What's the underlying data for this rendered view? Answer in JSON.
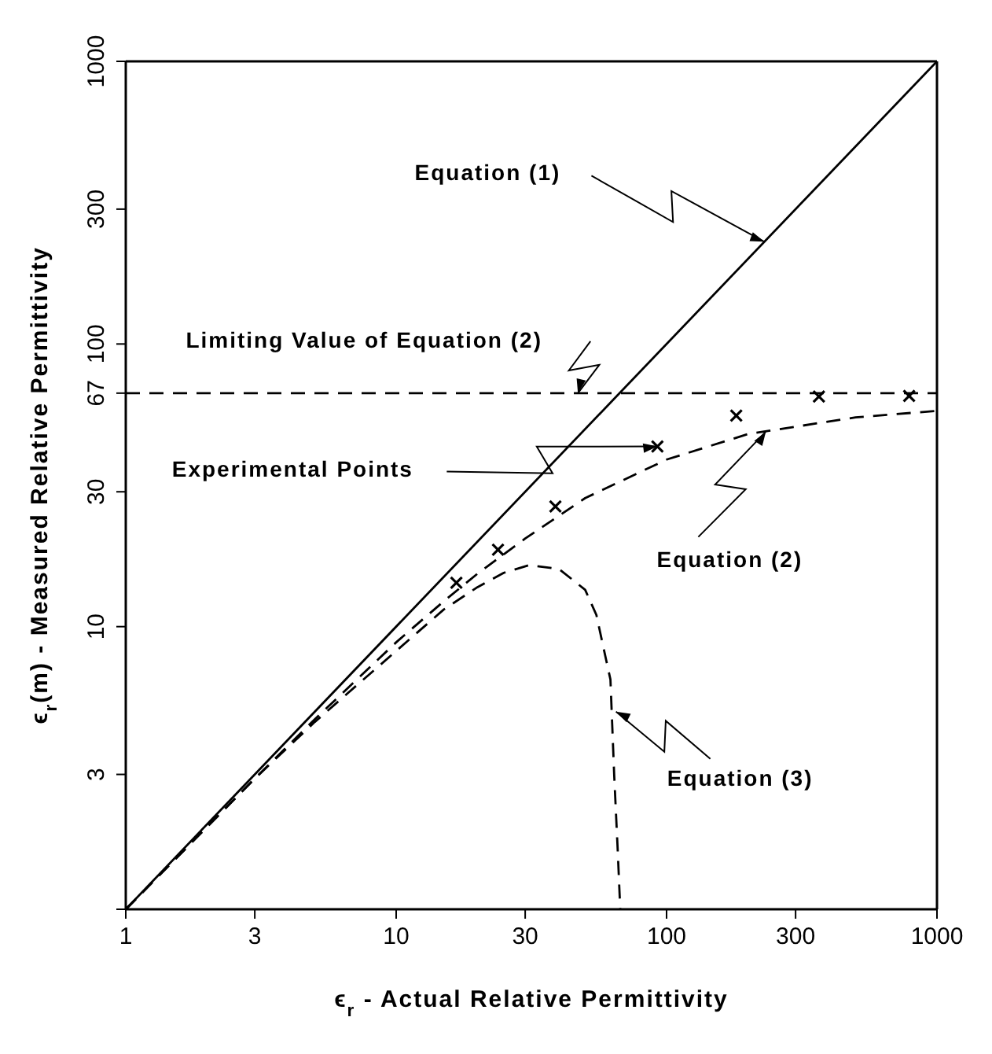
{
  "chart_data": {
    "type": "line",
    "xlabel": "ϵ$_{r}$ - Actual Relative Permittivity",
    "ylabel": "ϵ$_{r}$(m) - Measured Relative Permittivity",
    "log": "xy",
    "xlim": [
      1,
      1000
    ],
    "ylim": [
      1,
      1000
    ],
    "xticks": [
      1,
      3,
      10,
      30,
      100,
      300,
      1000
    ],
    "yticks": [
      {
        "value": 1,
        "label": null
      },
      3,
      10,
      30,
      67,
      100,
      300,
      1000
    ],
    "series": [
      {
        "color": "#000000",
        "line_style": "solid",
        "marker": "none",
        "x": [
          1,
          1000
        ],
        "values": [
          1,
          1000
        ]
      },
      {
        "color": "#000000",
        "line_style": "dashed",
        "marker": "none",
        "x": [
          1,
          3,
          5,
          10,
          15,
          20,
          30,
          50,
          100,
          200,
          500,
          1000
        ],
        "values": [
          1,
          2.9,
          4.7,
          8.8,
          12.3,
          15.4,
          20.5,
          28.5,
          39,
          48,
          55,
          58
        ]
      },
      {
        "color": "#000000",
        "line_style": "dashed",
        "marker": "none",
        "x": [
          1,
          3,
          5,
          10,
          15,
          20,
          25,
          31,
          40,
          50,
          55,
          60,
          62,
          64,
          66,
          67.4
        ],
        "values": [
          1,
          2.9,
          4.6,
          8.2,
          11.5,
          13.8,
          15.5,
          16.5,
          16,
          13.5,
          11,
          7.5,
          6.5,
          3,
          1.6,
          1
        ]
      },
      {
        "type": "scatter",
        "color": "#000000",
        "marker": "cross",
        "x": [
          16.7,
          23.8,
          38.8,
          92.5,
          181,
          366,
          789
        ],
        "values": [
          14.3,
          18.7,
          26.6,
          43.4,
          55.8,
          65.2,
          65.5
        ]
      }
    ],
    "ref_lines": [
      {
        "axis": "y",
        "value": 67,
        "color": "#000000",
        "line_style": "dashed"
      }
    ],
    "annotations": [
      "Equation (1)",
      {
        "text": "Limiting Value of Equation (2)",
        "x": 47,
        "y": 67
      },
      "Experimental Points",
      {
        "text": "Equation (2)",
        "x": 233,
        "y": 49
      },
      {
        "text": "Equation (3)",
        "x": 65,
        "y": 5
      }
    ]
  }
}
